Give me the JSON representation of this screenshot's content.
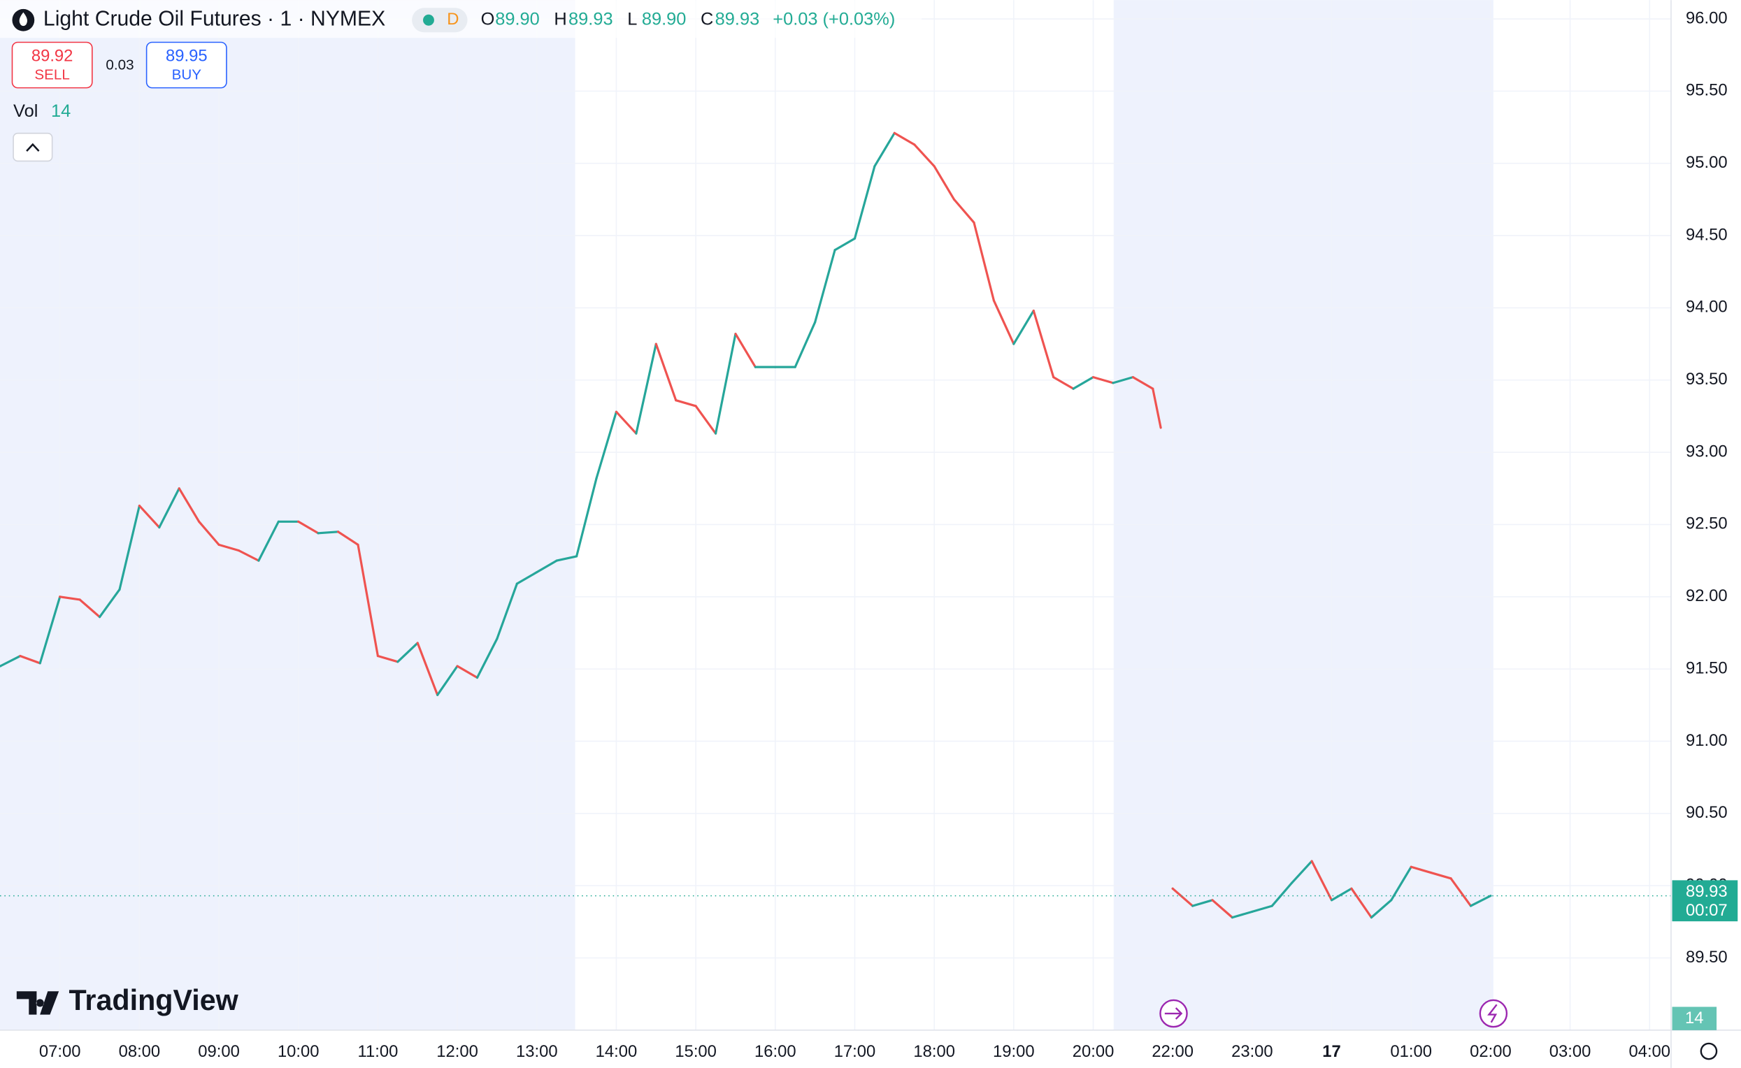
{
  "header": {
    "title": "Light Crude Oil Futures · 1 · NYMEX",
    "badge": "D",
    "ohlc": [
      {
        "key": "O",
        "text": "89.90"
      },
      {
        "key": "H",
        "text": "89.93"
      },
      {
        "key": "L",
        "text": "89.90"
      },
      {
        "key": "C",
        "text": "89.93"
      }
    ],
    "change": "+0.03 (+0.03%)",
    "sell_price": "89.92",
    "sell": "SELL",
    "spread": "0.03",
    "buy_price": "89.95",
    "buy": "BUY",
    "vol_label": "Vol",
    "vol_value": "14",
    "watermark": "TradingView"
  },
  "chart_data": {
    "type": "line",
    "up_color": "#26a69a",
    "down_color": "#ef5350",
    "x": [
      -0.75,
      -0.5,
      -0.25,
      0,
      0.25,
      0.5,
      0.75,
      1,
      1.25,
      1.5,
      1.75,
      2,
      2.25,
      2.5,
      2.75,
      3,
      3.25,
      3.5,
      3.75,
      4,
      4.25,
      4.5,
      4.75,
      5,
      5.25,
      5.5,
      5.75,
      6,
      6.25,
      6.5,
      6.75,
      7,
      7.25,
      7.5,
      7.75,
      8,
      8.25,
      8.5,
      8.75,
      9,
      9.25,
      9.5,
      9.75,
      10,
      10.25,
      10.5,
      10.75,
      11,
      11.25,
      11.5,
      11.75,
      12,
      12.25,
      12.5,
      12.75,
      13,
      13.25,
      13.5,
      13.75,
      13.85,
      13.92,
      14,
      14.25,
      14.5,
      14.75,
      15,
      15.25,
      15.5,
      15.75,
      16,
      16.25,
      16.5,
      16.75,
      17,
      17.25,
      17.5,
      17.75,
      18
    ],
    "values": [
      91.52,
      91.59,
      91.54,
      92.0,
      91.98,
      91.86,
      92.05,
      92.63,
      92.48,
      92.75,
      92.52,
      92.36,
      92.32,
      92.25,
      92.52,
      92.52,
      92.44,
      92.45,
      92.36,
      91.59,
      91.55,
      91.68,
      91.32,
      91.52,
      91.44,
      91.71,
      92.09,
      92.17,
      92.25,
      92.28,
      92.82,
      93.28,
      93.13,
      93.75,
      93.36,
      93.32,
      93.13,
      93.82,
      93.59,
      93.59,
      93.59,
      93.9,
      94.4,
      94.48,
      94.98,
      95.21,
      95.13,
      94.98,
      94.75,
      94.59,
      94.05,
      93.75,
      93.98,
      93.52,
      93.44,
      93.52,
      93.48,
      93.52,
      93.44,
      93.17,
      null,
      89.98,
      89.86,
      89.9,
      89.78,
      89.82,
      89.86,
      90.02,
      90.17,
      89.9,
      89.98,
      89.78,
      89.9,
      90.13,
      90.09,
      90.05,
      89.86,
      89.93
    ],
    "xlim": [
      -0.754,
      20.27
    ],
    "ylim": [
      89.0,
      96.13
    ],
    "xticks": [
      {
        "value": 0,
        "label": "07:00"
      },
      {
        "value": 1,
        "label": "08:00"
      },
      {
        "value": 2,
        "label": "09:00"
      },
      {
        "value": 3,
        "label": "10:00"
      },
      {
        "value": 4,
        "label": "11:00"
      },
      {
        "value": 5,
        "label": "12:00"
      },
      {
        "value": 6,
        "label": "13:00"
      },
      {
        "value": 7,
        "label": "14:00"
      },
      {
        "value": 8,
        "label": "15:00"
      },
      {
        "value": 9,
        "label": "16:00"
      },
      {
        "value": 10,
        "label": "17:00"
      },
      {
        "value": 11,
        "label": "18:00"
      },
      {
        "value": 12,
        "label": "19:00"
      },
      {
        "value": 13,
        "label": "20:00"
      },
      {
        "value": 14,
        "label": "22:00"
      },
      {
        "value": 15,
        "label": "23:00"
      },
      {
        "value": 16,
        "label": "17"
      },
      {
        "value": 17,
        "label": "01:00"
      },
      {
        "value": 18,
        "label": "02:00"
      },
      {
        "value": 19,
        "label": "03:00"
      },
      {
        "value": 20,
        "label": "04:00"
      }
    ],
    "yticks": [
      {
        "value": 89.5,
        "label": "89.50"
      },
      {
        "value": 90,
        "label": "90.00"
      },
      {
        "value": 90.5,
        "label": "90.50"
      },
      {
        "value": 91,
        "label": "91.00"
      },
      {
        "value": 91.5,
        "label": "91.50"
      },
      {
        "value": 92,
        "label": "92.00"
      },
      {
        "value": 92.5,
        "label": "92.50"
      },
      {
        "value": 93,
        "label": "93.00"
      },
      {
        "value": 93.5,
        "label": "93.50"
      },
      {
        "value": 94,
        "label": "94.00"
      },
      {
        "value": 94.5,
        "label": "94.50"
      },
      {
        "value": 95,
        "label": "95.00"
      },
      {
        "value": 95.5,
        "label": "95.50"
      },
      {
        "value": 96,
        "label": "96.00"
      }
    ],
    "grid": true,
    "last_price": {
      "value": 89.93,
      "label": "89.93"
    },
    "countdown": "00:07",
    "volume": 14
  }
}
